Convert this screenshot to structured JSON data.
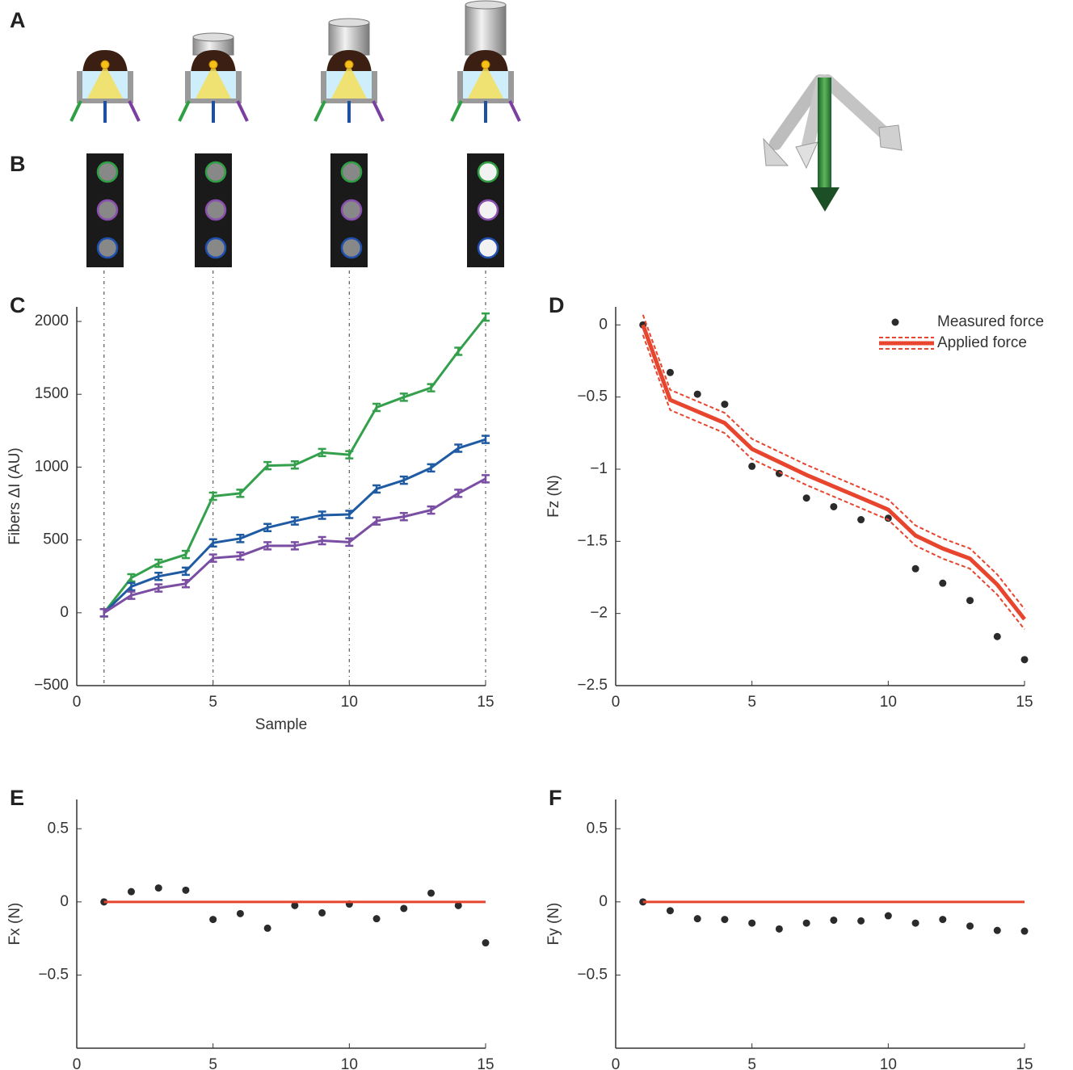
{
  "figure": {
    "panel_labels": [
      "A",
      "B"
    ]
  },
  "chart_data": [
    {
      "type": "line",
      "panel_label": "C",
      "xlabel": "Sample",
      "ylabel": "Fibers ΔI (AU)",
      "x": [
        1,
        2,
        3,
        4,
        5,
        6,
        7,
        8,
        9,
        10,
        11,
        12,
        13,
        14,
        15
      ],
      "xlim": [
        0,
        15
      ],
      "xticks": [
        0,
        5,
        10,
        15
      ],
      "ylim": [
        -500,
        2100
      ],
      "yticks": [
        {
          "value": -500,
          "label": "−500"
        },
        0,
        500,
        1000,
        1500,
        2000
      ],
      "vlines": [
        1,
        5,
        10,
        15
      ],
      "series": [
        {
          "color": "#34a04c",
          "error_style": "bars",
          "values": [
            0,
            240,
            340,
            400,
            800,
            820,
            1010,
            1015,
            1100,
            1085,
            1410,
            1480,
            1545,
            1795,
            2030
          ],
          "errors": [
            25,
            25,
            25,
            25,
            25,
            25,
            25,
            25,
            25,
            25,
            25,
            25,
            25,
            25,
            25
          ]
        },
        {
          "color": "#1f5ba3",
          "error_style": "bars",
          "values": [
            0,
            180,
            250,
            285,
            480,
            510,
            585,
            630,
            670,
            675,
            850,
            910,
            995,
            1130,
            1190
          ],
          "errors": [
            25,
            25,
            25,
            25,
            25,
            25,
            25,
            25,
            25,
            25,
            25,
            25,
            25,
            25,
            25
          ]
        },
        {
          "color": "#7a4fa3",
          "error_style": "bars",
          "values": [
            0,
            120,
            170,
            200,
            375,
            390,
            460,
            460,
            495,
            485,
            630,
            660,
            705,
            820,
            920
          ],
          "errors": [
            25,
            25,
            25,
            25,
            25,
            25,
            25,
            25,
            25,
            25,
            25,
            25,
            25,
            25,
            25
          ]
        }
      ]
    },
    {
      "type": "line",
      "panel_label": "D",
      "ylabel": "Fz (N)",
      "legend": "upper right",
      "x": [
        1,
        2,
        3,
        4,
        5,
        6,
        7,
        8,
        9,
        10,
        11,
        12,
        13,
        14,
        15
      ],
      "xlim": [
        0,
        15
      ],
      "xticks": [
        0,
        5,
        10,
        15
      ],
      "ylim": [
        -2.5,
        0.125
      ],
      "yticks": [
        {
          "value": -2.5,
          "label": "−2.5"
        },
        {
          "value": -2,
          "label": "−2"
        },
        {
          "value": -1.5,
          "label": "−1.5"
        },
        {
          "value": -1,
          "label": "−1"
        },
        {
          "value": -0.5,
          "label": "−0.5"
        },
        0
      ],
      "series": [
        {
          "name": "Measured force",
          "type": "scatter",
          "color": "#2b2b2b",
          "values": [
            0,
            -0.33,
            -0.48,
            -0.55,
            -0.98,
            -1.03,
            -1.2,
            -1.26,
            -1.35,
            -1.34,
            -1.69,
            -1.79,
            -1.91,
            -2.16,
            -2.32
          ]
        },
        {
          "name": "Applied force",
          "type": "line",
          "color": "#e8452f",
          "error_style": "band",
          "values": [
            0,
            -0.52,
            -0.6,
            -0.68,
            -0.86,
            -0.95,
            -1.04,
            -1.12,
            -1.2,
            -1.28,
            -1.46,
            -1.55,
            -1.62,
            -1.8,
            -2.04
          ],
          "errors": [
            0.07,
            0.07,
            0.07,
            0.07,
            0.07,
            0.07,
            0.07,
            0.07,
            0.07,
            0.07,
            0.07,
            0.07,
            0.07,
            0.07,
            0.07
          ]
        }
      ]
    },
    {
      "type": "line",
      "panel_label": "E",
      "ylabel": "Fx (N)",
      "x": [
        1,
        2,
        3,
        4,
        5,
        6,
        7,
        8,
        9,
        10,
        11,
        12,
        13,
        14,
        15
      ],
      "xlim": [
        0,
        15
      ],
      "xticks": [
        0,
        5,
        10,
        15
      ],
      "ylim": [
        -1,
        0.7
      ],
      "yticks": [
        {
          "value": -0.5,
          "label": "−0.5"
        },
        0,
        0.5
      ],
      "series": [
        {
          "type": "scatter",
          "color": "#2b2b2b",
          "values": [
            0,
            0.07,
            0.095,
            0.08,
            -0.12,
            -0.08,
            -0.18,
            -0.025,
            -0.075,
            -0.015,
            -0.115,
            -0.045,
            0.06,
            -0.025,
            -0.28
          ]
        },
        {
          "type": "line",
          "color": "#e8452f",
          "values": [
            0,
            0,
            0,
            0,
            0,
            0,
            0,
            0,
            0,
            0,
            0,
            0,
            0,
            0,
            0
          ]
        }
      ]
    },
    {
      "type": "line",
      "panel_label": "F",
      "ylabel": "Fy (N)",
      "x": [
        1,
        2,
        3,
        4,
        5,
        6,
        7,
        8,
        9,
        10,
        11,
        12,
        13,
        14,
        15
      ],
      "xlim": [
        0,
        15
      ],
      "xticks": [
        0,
        5,
        10,
        15
      ],
      "ylim": [
        -1,
        0.7
      ],
      "yticks": [
        {
          "value": -0.5,
          "label": "−0.5"
        },
        0,
        0.5
      ],
      "series": [
        {
          "type": "scatter",
          "color": "#2b2b2b",
          "values": [
            0,
            -0.06,
            -0.115,
            -0.12,
            -0.145,
            -0.185,
            -0.145,
            -0.125,
            -0.13,
            -0.095,
            -0.145,
            -0.12,
            -0.165,
            -0.195,
            -0.2
          ]
        },
        {
          "type": "line",
          "color": "#e8452f",
          "values": [
            0,
            0,
            0,
            0,
            0,
            0,
            0,
            0,
            0,
            0,
            0,
            0,
            0,
            0,
            0
          ]
        }
      ]
    }
  ]
}
